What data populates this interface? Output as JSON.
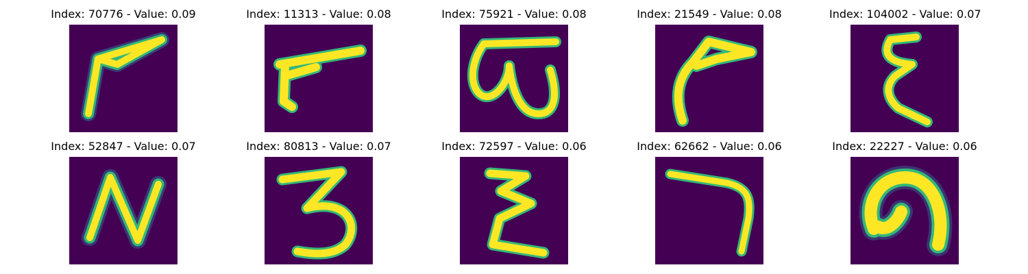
{
  "colors": {
    "background": "#440154",
    "edge_dark": "#31688e",
    "edge_mid": "#35b779",
    "core": "#fde725"
  },
  "panels": [
    {
      "title": "Index: 70776 - Value: 0.09",
      "glyph": "hook-stroke-icon"
    },
    {
      "title": "Index: 11313 - Value: 0.08",
      "glyph": "hook-stroke-icon"
    },
    {
      "title": "Index: 75921 - Value: 0.08",
      "glyph": "omega-shape-icon"
    },
    {
      "title": "Index: 21549 - Value: 0.08",
      "glyph": "hook-stroke-icon"
    },
    {
      "title": "Index: 104002 - Value: 0.07",
      "glyph": "epsilon-shape-icon"
    },
    {
      "title": "Index: 52847 - Value: 0.07",
      "glyph": "n-shape-icon"
    },
    {
      "title": "Index: 80813 - Value: 0.07",
      "glyph": "three-shape-icon"
    },
    {
      "title": "Index: 72597 - Value: 0.06",
      "glyph": "epsilon-shape-icon"
    },
    {
      "title": "Index: 62662 - Value: 0.06",
      "glyph": "seven-shape-icon"
    },
    {
      "title": "Index: 22227 - Value: 0.06",
      "glyph": "arch-shape-icon"
    }
  ]
}
